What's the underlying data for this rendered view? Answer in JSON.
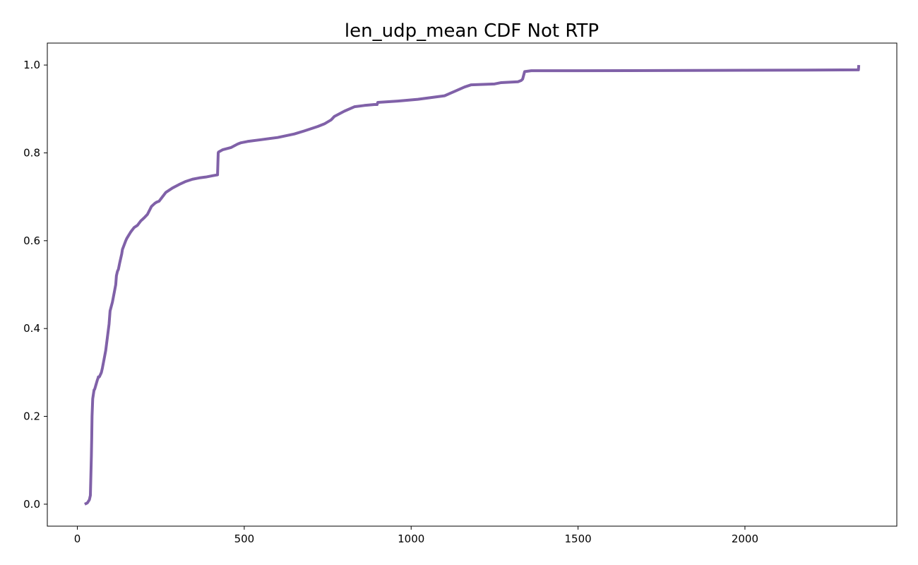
{
  "chart_data": {
    "type": "line",
    "title": "len_udp_mean CDF Not RTP",
    "xlabel": "",
    "ylabel": "",
    "xlim": [
      -90,
      2455
    ],
    "ylim": [
      -0.05,
      1.05
    ],
    "xticks": [
      0,
      500,
      1000,
      1500,
      2000
    ],
    "xtick_labels": [
      "0",
      "500",
      "1000",
      "1500",
      "2000"
    ],
    "yticks": [
      0.0,
      0.2,
      0.4,
      0.6,
      0.8,
      1.0
    ],
    "ytick_labels": [
      "0.0",
      "0.2",
      "0.4",
      "0.6",
      "0.8",
      "1.0"
    ],
    "grid": false,
    "legend": "none",
    "series": [
      {
        "color": "#8061a8",
        "x": [
          22,
          30,
          36,
          39,
          42,
          43,
          44,
          46,
          48,
          50,
          52,
          55,
          60,
          62,
          63,
          66,
          72,
          75,
          80,
          85,
          90,
          95,
          98,
          105,
          110,
          115,
          117,
          120,
          123,
          127,
          130,
          133,
          135,
          140,
          145,
          148,
          152,
          160,
          170,
          180,
          190,
          200,
          210,
          218,
          222,
          232,
          238,
          245,
          255,
          265,
          285,
          305,
          325,
          345,
          365,
          385,
          405,
          420,
          422,
          423,
          435,
          460,
          480,
          490,
          510,
          550,
          600,
          650,
          680,
          700,
          720,
          740,
          760,
          770,
          800,
          830,
          860,
          890,
          898,
          900,
          960,
          1020,
          1060,
          1100,
          1130,
          1160,
          1180,
          1250,
          1270,
          1320,
          1330,
          1334,
          1340,
          1360,
          1500,
          2000,
          2340,
          2341
        ],
        "values": [
          0.0,
          0.003,
          0.01,
          0.02,
          0.11,
          0.15,
          0.2,
          0.24,
          0.25,
          0.26,
          0.262,
          0.27,
          0.283,
          0.287,
          0.29,
          0.29,
          0.3,
          0.31,
          0.33,
          0.35,
          0.38,
          0.41,
          0.44,
          0.46,
          0.48,
          0.5,
          0.52,
          0.53,
          0.535,
          0.55,
          0.56,
          0.57,
          0.58,
          0.59,
          0.6,
          0.605,
          0.61,
          0.62,
          0.63,
          0.635,
          0.645,
          0.652,
          0.66,
          0.672,
          0.678,
          0.685,
          0.688,
          0.69,
          0.7,
          0.71,
          0.72,
          0.728,
          0.735,
          0.74,
          0.743,
          0.745,
          0.748,
          0.75,
          0.8,
          0.802,
          0.807,
          0.812,
          0.82,
          0.823,
          0.826,
          0.83,
          0.835,
          0.843,
          0.85,
          0.855,
          0.86,
          0.866,
          0.875,
          0.883,
          0.895,
          0.905,
          0.908,
          0.91,
          0.91,
          0.915,
          0.918,
          0.922,
          0.926,
          0.93,
          0.94,
          0.95,
          0.955,
          0.957,
          0.96,
          0.962,
          0.965,
          0.968,
          0.985,
          0.987,
          0.987,
          0.988,
          0.989,
          1.0
        ]
      }
    ]
  }
}
